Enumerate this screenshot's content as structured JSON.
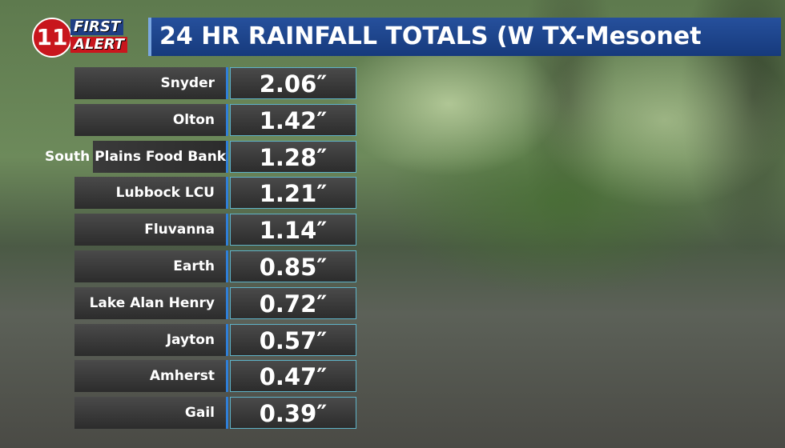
{
  "logo": {
    "number": "11",
    "line1": "FIRST",
    "line2": "ALERT"
  },
  "header": {
    "title": "24 HR RAINFALL TOTALS (W TX-Mesonet"
  },
  "table": {
    "rows": [
      [
        "Snyder",
        "2.06″"
      ],
      [
        "Olton",
        "1.42″"
      ],
      [
        "South Plains Food Bank",
        "1.28″"
      ],
      [
        "Lubbock LCU",
        "1.21″"
      ],
      [
        "Fluvanna",
        "1.14″"
      ],
      [
        "Earth",
        "0.85″"
      ],
      [
        "Lake Alan Henry",
        "0.72″"
      ],
      [
        "Jayton",
        "0.57″"
      ],
      [
        "Amherst",
        "0.47″"
      ],
      [
        "Gail",
        "0.39″"
      ]
    ]
  }
}
